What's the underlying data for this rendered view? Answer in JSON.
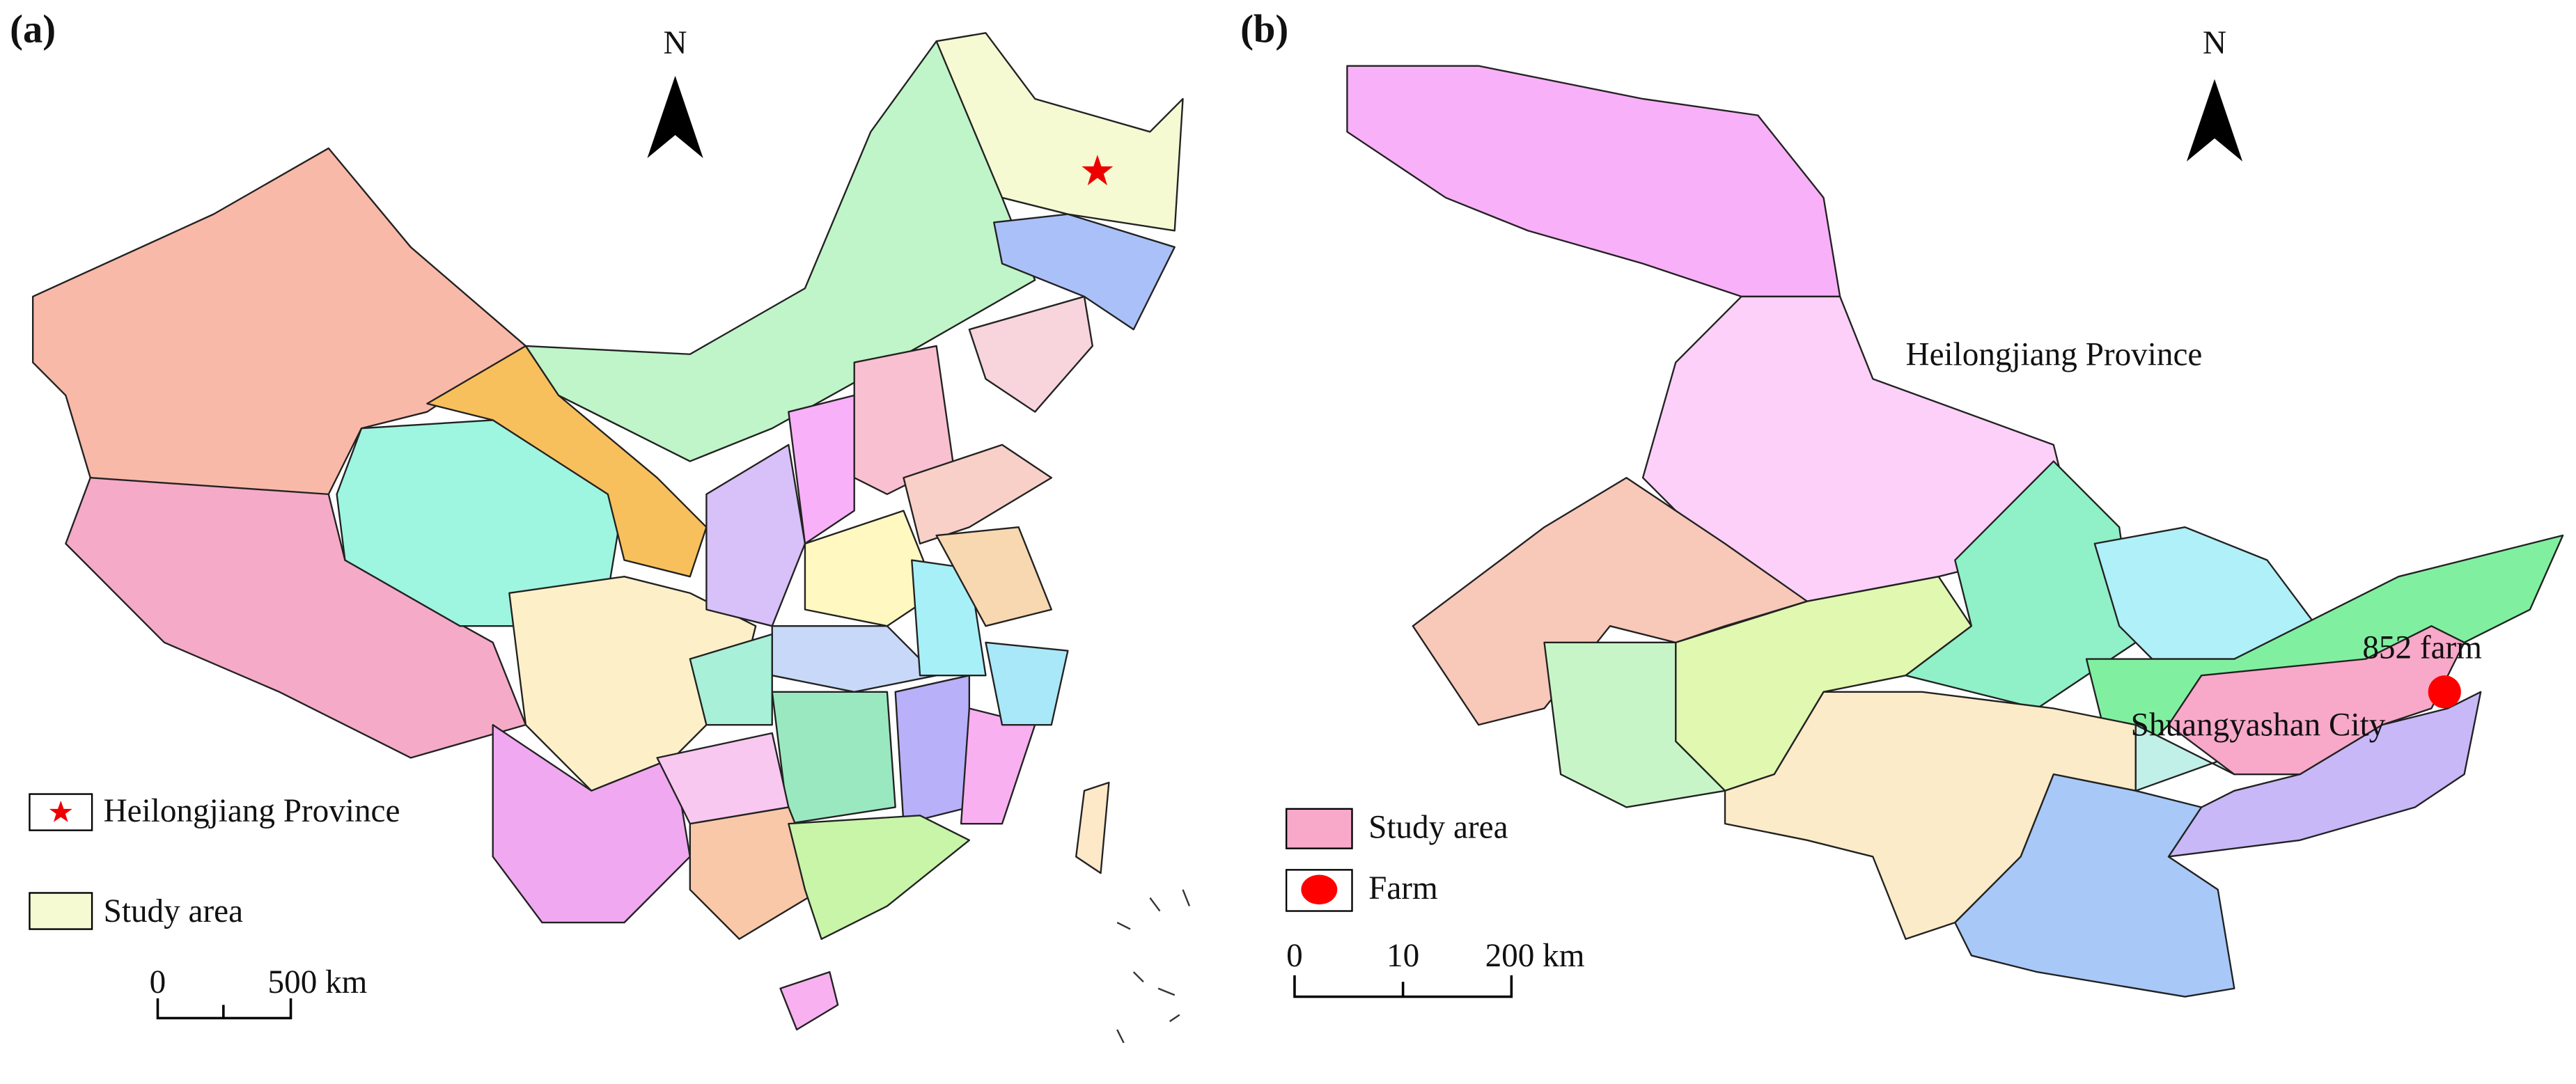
{
  "panel_a": {
    "label": "(a)",
    "north": "N",
    "legend": [
      "Heilongjiang Province",
      "Study area"
    ],
    "scale_bar": [
      "0",
      "500 km"
    ]
  },
  "panel_b": {
    "label": "(b)",
    "north": "N",
    "map_labels": [
      "Heilongjiang Province",
      "852 farm",
      "Shuangyashan City"
    ],
    "legend": [
      "Study area",
      "Farm"
    ],
    "scale_bar": [
      "0",
      "10",
      "200 km"
    ]
  }
}
